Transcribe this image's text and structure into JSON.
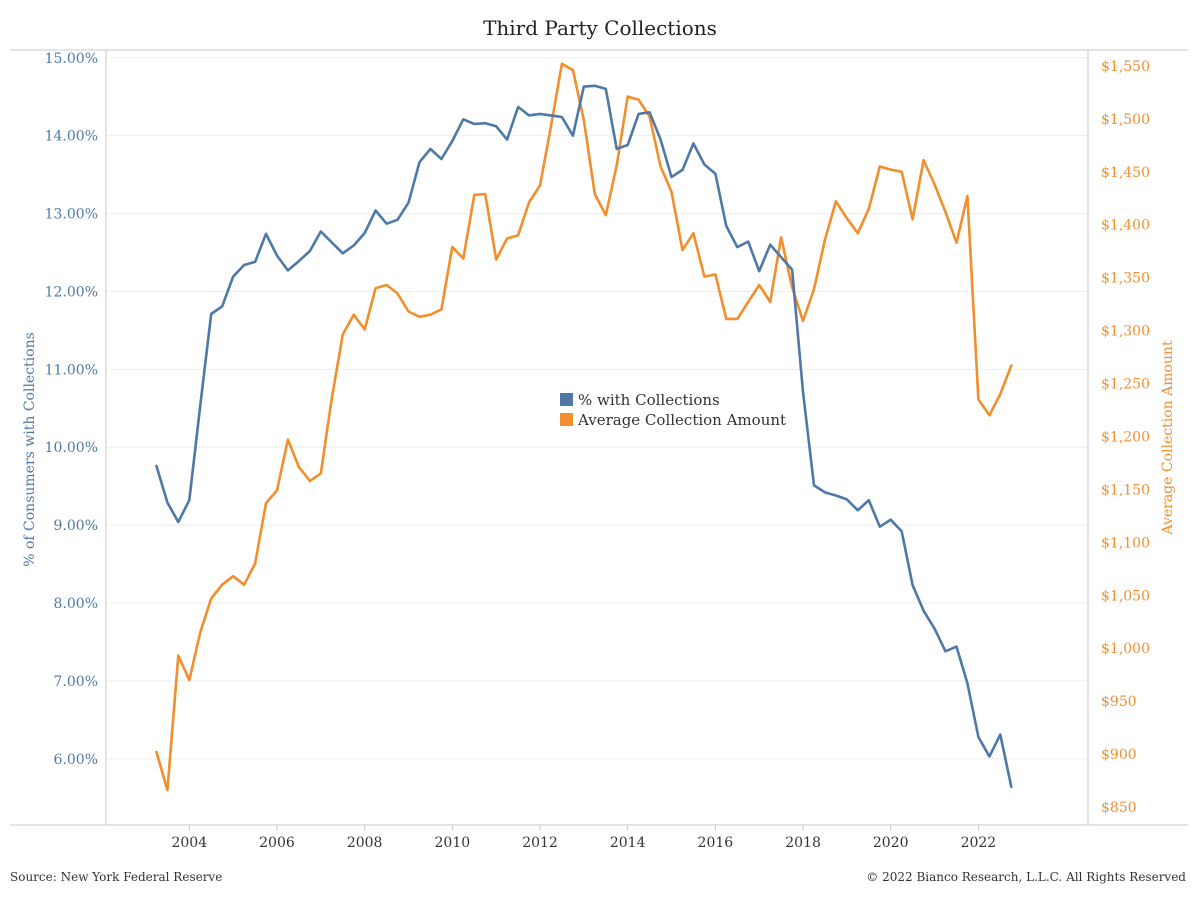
{
  "title": "Third Party Collections",
  "footer": {
    "source": "Source: New York Federal Reserve",
    "copyright": "© 2022 Bianco Research, L.L.C. All Rights Reserved"
  },
  "colors": {
    "left_series": "#4e79a7",
    "right_series": "#f28e2b",
    "axis_text": "#4e79a7",
    "right_axis_text": "#f28e2b",
    "gridline": "#eeeeee",
    "axis_line": "#c8c8c8"
  },
  "chart_data": {
    "type": "line",
    "title": "Third Party Collections",
    "xlabel": "",
    "ylabel": "% of Consumers with Collections",
    "y2label": "Average Collection Amount",
    "xlim": [
      2002.1,
      2024.5
    ],
    "ylim": [
      5.15,
      15.1
    ],
    "y2lim": [
      833,
      1565
    ],
    "x_ticks": [
      "2004",
      "2006",
      "2008",
      "2010",
      "2012",
      "2014",
      "2016",
      "2018",
      "2020",
      "2022"
    ],
    "y_ticks": [
      "6.00%",
      "7.00%",
      "8.00%",
      "9.00%",
      "10.00%",
      "11.00%",
      "12.00%",
      "13.00%",
      "14.00%",
      "15.00%"
    ],
    "y_tick_values": [
      6,
      7,
      8,
      9,
      10,
      11,
      12,
      13,
      14,
      15
    ],
    "y2_ticks": [
      "$850",
      "$900",
      "$950",
      "$1,000",
      "$1,050",
      "$1,100",
      "$1,150",
      "$1,200",
      "$1,250",
      "$1,300",
      "$1,350",
      "$1,400",
      "$1,450",
      "$1,500",
      "$1,550"
    ],
    "y2_tick_values": [
      850,
      900,
      950,
      1000,
      1050,
      1100,
      1150,
      1200,
      1250,
      1300,
      1350,
      1400,
      1450,
      1500,
      1550
    ],
    "legend_position": "center",
    "x": [
      2003.25,
      2003.5,
      2003.75,
      2004.0,
      2004.25,
      2004.5,
      2004.75,
      2005.0,
      2005.25,
      2005.5,
      2005.75,
      2006.0,
      2006.25,
      2006.5,
      2006.75,
      2007.0,
      2007.25,
      2007.5,
      2007.75,
      2008.0,
      2008.25,
      2008.5,
      2008.75,
      2009.0,
      2009.25,
      2009.5,
      2009.75,
      2010.0,
      2010.25,
      2010.5,
      2010.75,
      2011.0,
      2011.25,
      2011.5,
      2011.75,
      2012.0,
      2012.25,
      2012.5,
      2012.75,
      2013.0,
      2013.25,
      2013.5,
      2013.75,
      2014.0,
      2014.25,
      2014.5,
      2014.75,
      2015.0,
      2015.25,
      2015.5,
      2015.75,
      2016.0,
      2016.25,
      2016.5,
      2016.75,
      2017.0,
      2017.25,
      2017.5,
      2017.75,
      2018.0,
      2018.25,
      2018.5,
      2018.75,
      2019.0,
      2019.25,
      2019.5,
      2019.75,
      2020.0,
      2020.25,
      2020.5,
      2020.75,
      2021.0,
      2021.25,
      2021.5,
      2021.75,
      2022.0,
      2022.25,
      2022.5,
      2022.75
    ],
    "series": [
      {
        "name": "% with Collections",
        "axis": "left",
        "values": [
          9.76,
          9.29,
          9.04,
          9.32,
          10.54,
          11.71,
          11.81,
          12.19,
          12.34,
          12.38,
          12.74,
          12.46,
          12.27,
          12.39,
          12.52,
          12.77,
          12.63,
          12.49,
          12.59,
          12.75,
          13.04,
          12.87,
          12.92,
          13.14,
          13.66,
          13.83,
          13.7,
          13.93,
          14.21,
          14.15,
          14.16,
          14.12,
          13.95,
          14.37,
          14.26,
          14.28,
          14.26,
          14.24,
          14.0,
          14.63,
          14.64,
          14.6,
          13.83,
          13.88,
          14.28,
          14.3,
          13.95,
          13.47,
          13.56,
          13.9,
          13.63,
          13.51,
          12.84,
          12.57,
          12.64,
          12.26,
          12.6,
          12.44,
          12.28,
          10.71,
          9.51,
          9.42,
          9.38,
          9.33,
          9.19,
          9.32,
          8.98,
          9.07,
          8.92,
          8.23,
          7.9,
          7.67,
          7.38,
          7.44,
          6.97,
          6.28,
          6.03,
          6.31,
          5.64
        ]
      },
      {
        "name": "Average Collection Amount",
        "axis": "right",
        "values": [
          902,
          866,
          993,
          970,
          1015,
          1047,
          1060,
          1068,
          1060,
          1080,
          1137,
          1149,
          1197,
          1171,
          1158,
          1165,
          1236,
          1296,
          1315,
          1301,
          1340,
          1343,
          1335,
          1318,
          1313,
          1315,
          1320,
          1379,
          1368,
          1428,
          1429,
          1367,
          1387,
          1390,
          1421,
          1437,
          1493,
          1552,
          1546,
          1499,
          1429,
          1409,
          1456,
          1521,
          1518,
          1502,
          1455,
          1431,
          1376,
          1392,
          1351,
          1353,
          1311,
          1311,
          1327,
          1343,
          1327,
          1388,
          1341,
          1309,
          1339,
          1386,
          1422,
          1406,
          1392,
          1415,
          1455,
          1452,
          1450,
          1405,
          1461,
          1438,
          1412,
          1383,
          1427,
          1235,
          1220,
          1240,
          1267
        ]
      }
    ]
  }
}
